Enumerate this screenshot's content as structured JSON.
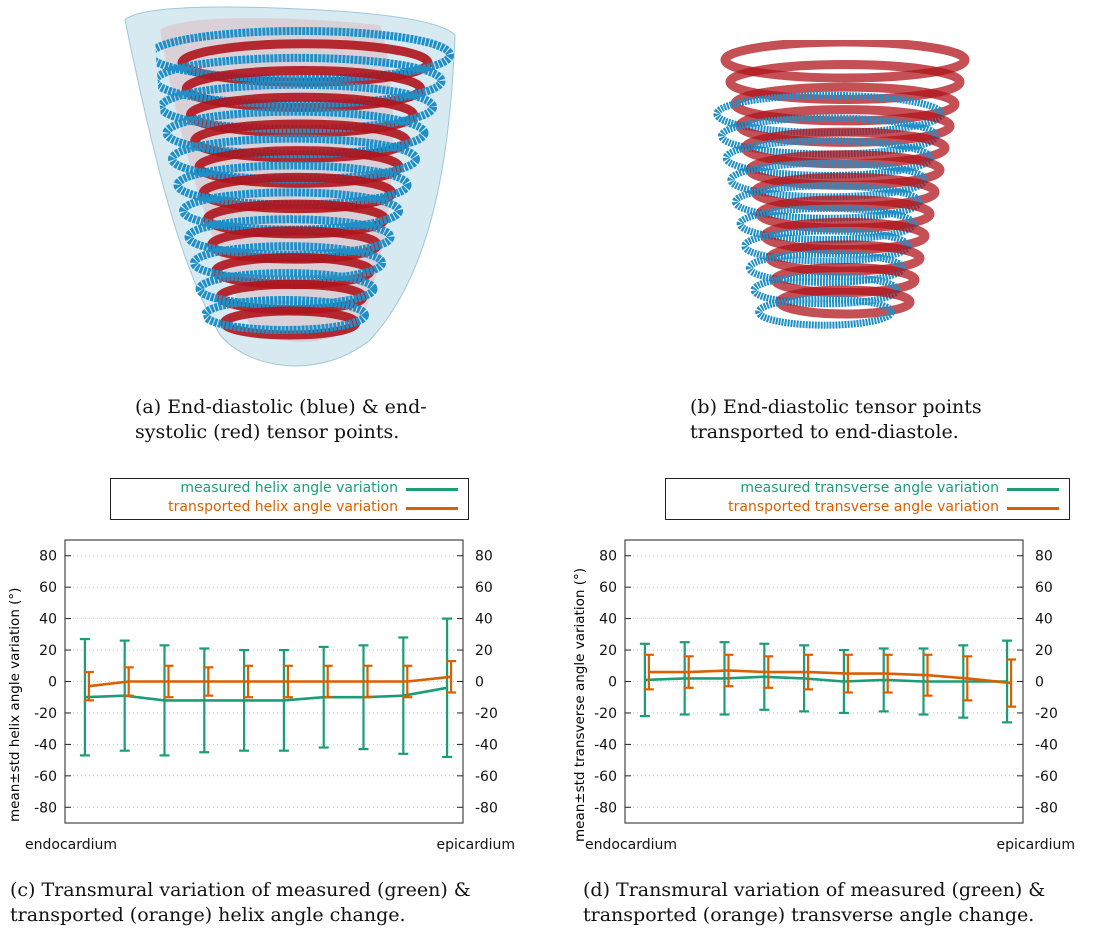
{
  "figure": {
    "panel_a": {
      "caption_lines": [
        "(a) End-diastolic (blue) & end-",
        "systolic (red) tensor points."
      ],
      "colors": {
        "ed": "#1f8fc7",
        "es": "#b0141c",
        "surface": "#b8d8e6"
      }
    },
    "panel_b": {
      "caption_lines": [
        "(b) End-diastolic tensor points",
        "transported to end-diastole."
      ]
    },
    "panel_c": {
      "caption_lines": [
        "(c) Transmural variation of measured (green) &",
        "transported (orange) helix angle change."
      ]
    },
    "panel_d": {
      "caption_lines": [
        "(d) Transmural variation of measured (green) &",
        "transported (orange) transverse angle change."
      ]
    }
  },
  "chart_data": [
    {
      "type": "line",
      "ylabel": "mean±std helix angle variation (°)",
      "xtick_labels": [
        "endocardium",
        "epicardium"
      ],
      "yticks": [
        80,
        60,
        40,
        20,
        0,
        -20,
        -40,
        -60,
        -80
      ],
      "ytick_labels": [
        "80",
        "60",
        "40",
        "20",
        "0",
        "-20",
        "-40",
        "-60",
        "-80"
      ],
      "ylim": [
        -90,
        90
      ],
      "grid": true,
      "legend_position": "top",
      "series": [
        {
          "name": "measured helix angle variation",
          "color": "#1b9e77",
          "x": [
            0.05,
            0.15,
            0.25,
            0.35,
            0.45,
            0.55,
            0.65,
            0.75,
            0.85,
            0.96
          ],
          "y": [
            -10,
            -9,
            -12,
            -12,
            -12,
            -12,
            -10,
            -10,
            -9,
            -4
          ],
          "std": [
            37,
            35,
            35,
            33,
            32,
            32,
            32,
            33,
            37,
            44
          ]
        },
        {
          "name": "transported helix angle variation",
          "color": "#d95f02",
          "x": [
            0.05,
            0.15,
            0.25,
            0.35,
            0.45,
            0.55,
            0.65,
            0.75,
            0.85,
            0.96
          ],
          "y": [
            -3,
            0,
            0,
            0,
            0,
            0,
            0,
            0,
            0,
            3
          ],
          "std": [
            9,
            9,
            10,
            9,
            10,
            10,
            10,
            10,
            10,
            10
          ]
        }
      ]
    },
    {
      "type": "line",
      "ylabel": "mean±std transverse angle variation (°)",
      "xtick_labels": [
        "endocardium",
        "epicardium"
      ],
      "yticks": [
        80,
        60,
        40,
        20,
        0,
        -20,
        -40,
        -60,
        -80
      ],
      "ytick_labels": [
        "80",
        "60",
        "40",
        "20",
        "0",
        "-20",
        "-40",
        "-60",
        "-80"
      ],
      "ylim": [
        -90,
        90
      ],
      "grid": true,
      "legend_position": "top",
      "series": [
        {
          "name": "measured transverse angle variation",
          "color": "#1b9e77",
          "x": [
            0.05,
            0.15,
            0.25,
            0.35,
            0.45,
            0.55,
            0.65,
            0.75,
            0.85,
            0.96
          ],
          "y": [
            1,
            2,
            2,
            3,
            2,
            0,
            1,
            0,
            0,
            0
          ],
          "std": [
            23,
            23,
            23,
            21,
            21,
            20,
            20,
            21,
            23,
            26
          ]
        },
        {
          "name": "transported transverse angle variation",
          "color": "#d95f02",
          "x": [
            0.05,
            0.15,
            0.25,
            0.35,
            0.45,
            0.55,
            0.65,
            0.75,
            0.85,
            0.96
          ],
          "y": [
            6,
            6,
            7,
            6,
            6,
            5,
            5,
            4,
            2,
            -1
          ],
          "std": [
            11,
            10,
            10,
            10,
            11,
            12,
            12,
            13,
            14,
            15
          ]
        }
      ]
    }
  ]
}
